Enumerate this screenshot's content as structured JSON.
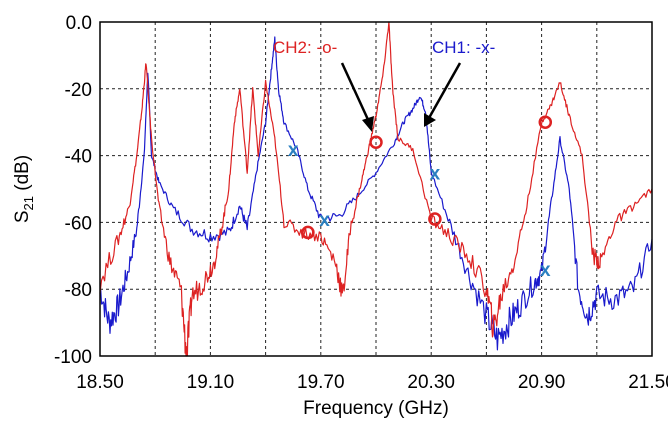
{
  "chart_data": {
    "type": "line",
    "xlabel": "Frequency (GHz)",
    "ylabel": {
      "main": "S",
      "sub": "21",
      "unit": " (dB)"
    },
    "xlim": [
      18.5,
      21.5
    ],
    "ylim": [
      -100,
      0
    ],
    "x_ticks": [
      "18.50",
      "19.10",
      "19.70",
      "20.30",
      "20.90",
      "21.50"
    ],
    "x_tick_values": [
      18.5,
      19.1,
      19.7,
      20.3,
      20.9,
      21.5
    ],
    "y_ticks": [
      "0.0",
      "-20",
      "-40",
      "-60",
      "-80",
      "-100"
    ],
    "y_tick_values": [
      0,
      -20,
      -40,
      -60,
      -80,
      -100
    ],
    "grid": true,
    "series": [
      {
        "name": "CH1",
        "color": "#1a1acc",
        "marker": "x",
        "marker_color": "#2a7fc0",
        "label": "CH1: -x-",
        "points": [
          [
            18.5,
            -80
          ],
          [
            18.55,
            -90
          ],
          [
            18.6,
            -85
          ],
          [
            18.65,
            -75
          ],
          [
            18.7,
            -62
          ],
          [
            18.74,
            -40
          ],
          [
            18.76,
            -15
          ],
          [
            18.78,
            -40
          ],
          [
            18.82,
            -48
          ],
          [
            18.9,
            -56
          ],
          [
            19.0,
            -62
          ],
          [
            19.1,
            -64
          ],
          [
            19.2,
            -63
          ],
          [
            19.26,
            -55
          ],
          [
            19.3,
            -62
          ],
          [
            19.35,
            -45
          ],
          [
            19.4,
            -30
          ],
          [
            19.43,
            -15
          ],
          [
            19.45,
            -5
          ],
          [
            19.47,
            -20
          ],
          [
            19.5,
            -30
          ],
          [
            19.57,
            -38
          ],
          [
            19.63,
            -50
          ],
          [
            19.7,
            -59
          ],
          [
            19.8,
            -58
          ],
          [
            19.9,
            -52
          ],
          [
            20.0,
            -45
          ],
          [
            20.1,
            -36
          ],
          [
            20.15,
            -30
          ],
          [
            20.2,
            -26
          ],
          [
            20.24,
            -22
          ],
          [
            20.27,
            -27
          ],
          [
            20.3,
            -45
          ],
          [
            20.4,
            -60
          ],
          [
            20.5,
            -75
          ],
          [
            20.6,
            -88
          ],
          [
            20.66,
            -95
          ],
          [
            20.72,
            -90
          ],
          [
            20.78,
            -85
          ],
          [
            20.86,
            -78
          ],
          [
            20.9,
            -75
          ],
          [
            20.95,
            -55
          ],
          [
            21.0,
            -35
          ],
          [
            21.05,
            -50
          ],
          [
            21.1,
            -80
          ],
          [
            21.15,
            -88
          ],
          [
            21.2,
            -82
          ],
          [
            21.3,
            -83
          ],
          [
            21.4,
            -80
          ],
          [
            21.5,
            -65
          ]
        ],
        "marker_points": [
          [
            19.55,
            -38
          ],
          [
            19.72,
            -59
          ],
          [
            20.32,
            -45
          ],
          [
            20.92,
            -74
          ]
        ]
      },
      {
        "name": "CH2",
        "color": "#dd2222",
        "marker": "o",
        "marker_color": "#dd2222",
        "label": "CH2: -o-",
        "points": [
          [
            18.5,
            -78
          ],
          [
            18.6,
            -65
          ],
          [
            18.66,
            -55
          ],
          [
            18.7,
            -40
          ],
          [
            18.73,
            -25
          ],
          [
            18.75,
            -12
          ],
          [
            18.78,
            -35
          ],
          [
            18.82,
            -55
          ],
          [
            18.88,
            -72
          ],
          [
            18.94,
            -80
          ],
          [
            18.97,
            -100
          ],
          [
            19.0,
            -82
          ],
          [
            19.06,
            -78
          ],
          [
            19.12,
            -72
          ],
          [
            19.16,
            -62
          ],
          [
            19.2,
            -50
          ],
          [
            19.23,
            -30
          ],
          [
            19.26,
            -20
          ],
          [
            19.3,
            -45
          ],
          [
            19.33,
            -20
          ],
          [
            19.36,
            -40
          ],
          [
            19.4,
            -18
          ],
          [
            19.45,
            -35
          ],
          [
            19.5,
            -60
          ],
          [
            19.6,
            -63
          ],
          [
            19.7,
            -64
          ],
          [
            19.78,
            -72
          ],
          [
            19.82,
            -82
          ],
          [
            19.86,
            -62
          ],
          [
            19.92,
            -48
          ],
          [
            19.96,
            -38
          ],
          [
            20.0,
            -28
          ],
          [
            20.04,
            -15
          ],
          [
            20.07,
            0
          ],
          [
            20.09,
            -20
          ],
          [
            20.12,
            -35
          ],
          [
            20.2,
            -38
          ],
          [
            20.3,
            -59
          ],
          [
            20.4,
            -64
          ],
          [
            20.5,
            -70
          ],
          [
            20.6,
            -80
          ],
          [
            20.64,
            -92
          ],
          [
            20.68,
            -82
          ],
          [
            20.75,
            -72
          ],
          [
            20.82,
            -55
          ],
          [
            20.9,
            -30
          ],
          [
            20.95,
            -25
          ],
          [
            21.0,
            -18
          ],
          [
            21.05,
            -28
          ],
          [
            21.12,
            -40
          ],
          [
            21.18,
            -70
          ],
          [
            21.22,
            -72
          ],
          [
            21.3,
            -60
          ],
          [
            21.4,
            -55
          ],
          [
            21.5,
            -50
          ]
        ],
        "marker_points": [
          [
            19.63,
            -63
          ],
          [
            20.0,
            -36
          ],
          [
            20.32,
            -59
          ],
          [
            20.92,
            -30
          ]
        ]
      }
    ],
    "annotations": [
      {
        "text": "CH2: -o-",
        "color": "#dd2222"
      },
      {
        "text": "CH1: -x-",
        "color": "#1a1acc"
      }
    ]
  }
}
